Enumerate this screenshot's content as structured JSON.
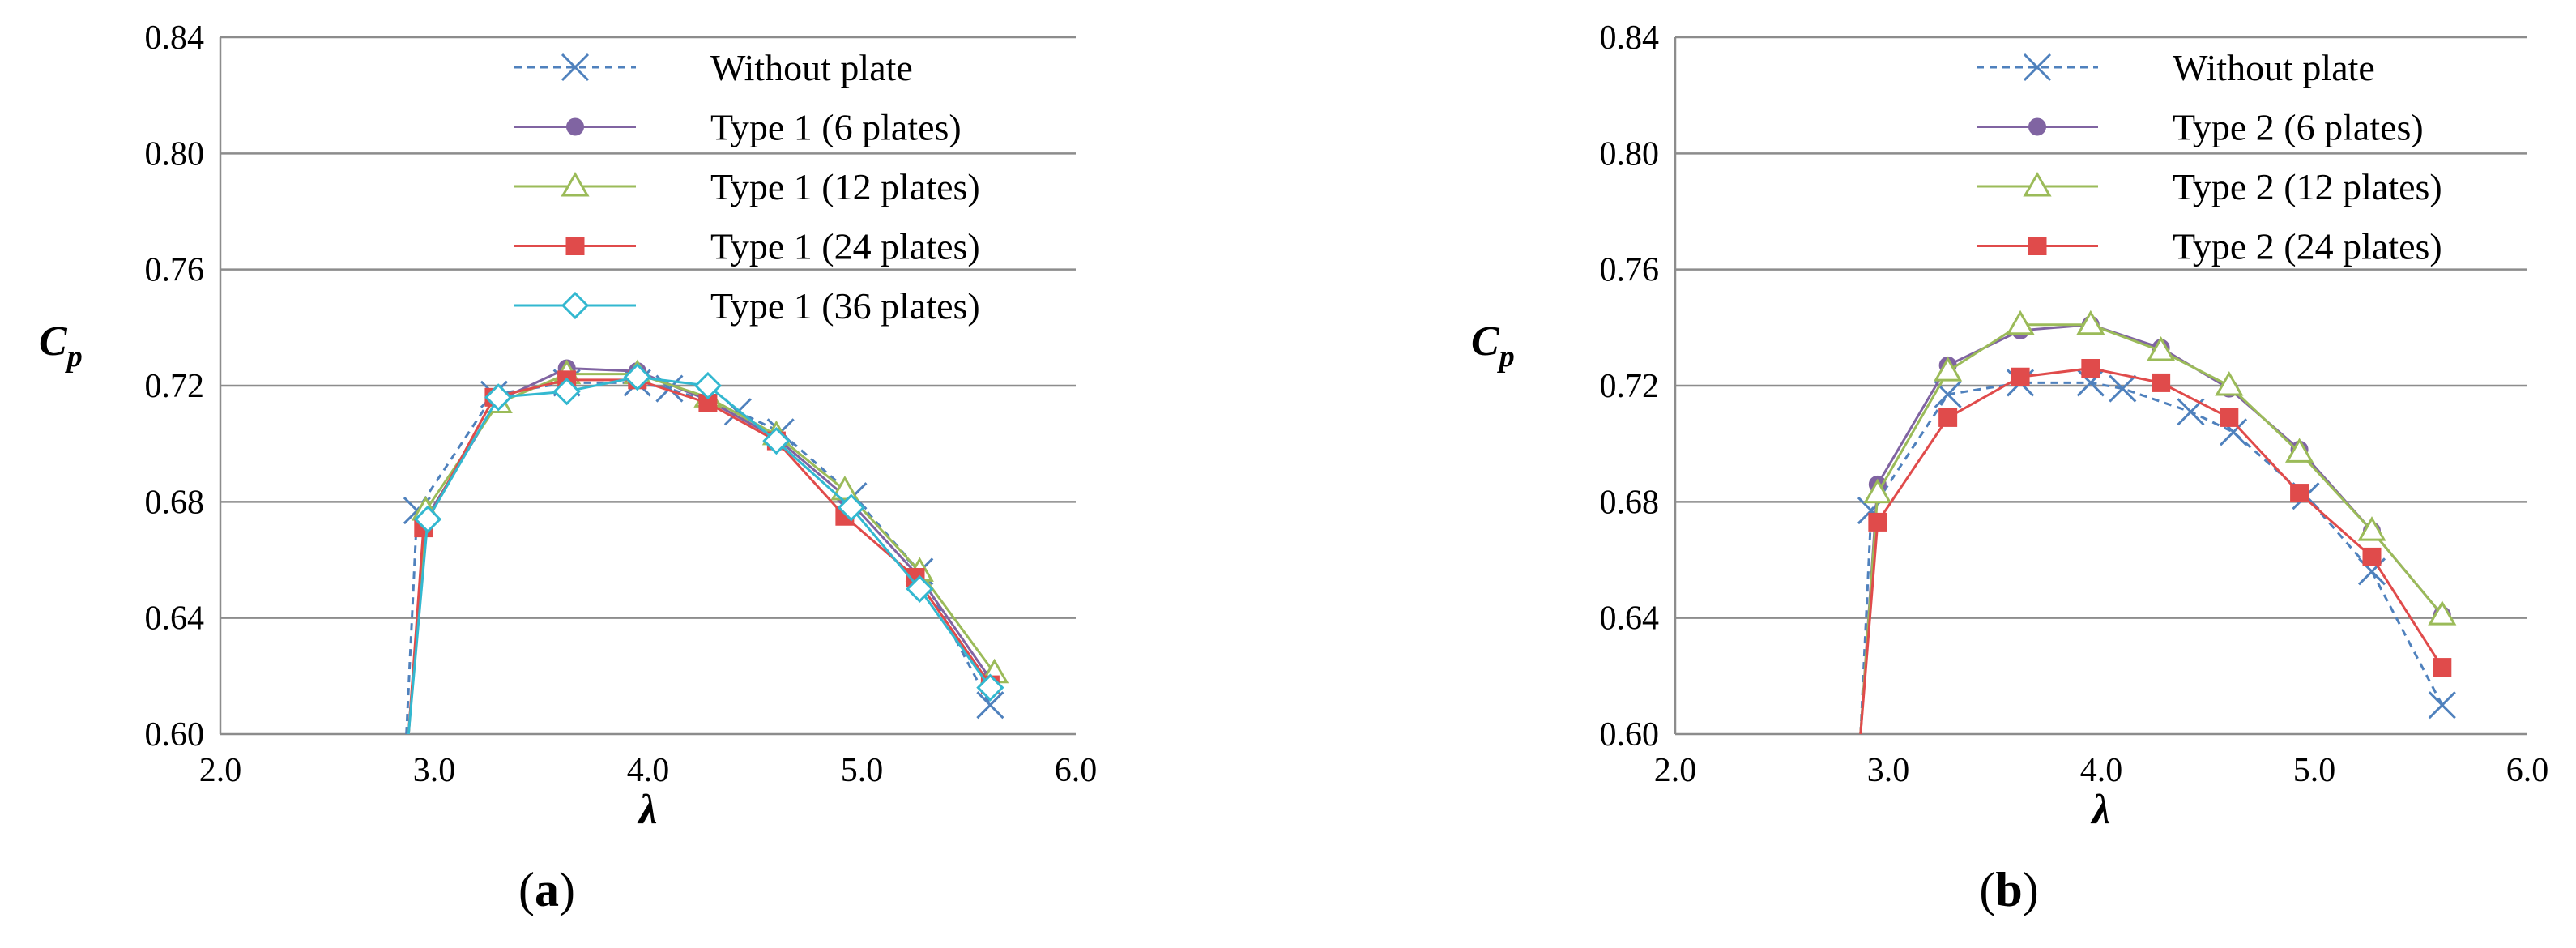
{
  "chart_data": [
    {
      "type": "line",
      "caption_open": "(",
      "caption_letter": "a",
      "caption_close": ")",
      "xlabel": "λ",
      "ylabel_main": "C",
      "ylabel_sub": "p",
      "xlim": [
        2.0,
        6.0
      ],
      "ylim": [
        0.6,
        0.84
      ],
      "xticks": [
        "2.0",
        "3.0",
        "4.0",
        "5.0",
        "6.0"
      ],
      "yticks": [
        "0.60",
        "0.64",
        "0.68",
        "0.72",
        "0.76",
        "0.80",
        "0.84"
      ],
      "grid": "horizontal",
      "legend_position": "top-right",
      "series": [
        {
          "name": "Without plate",
          "color": "#4f81bd",
          "marker": "x",
          "dash": true,
          "x": [
            2.87,
            2.92,
            3.28,
            3.62,
            3.95,
            4.1,
            4.42,
            4.62,
            4.96,
            5.27,
            5.6
          ],
          "y": [
            0.6,
            0.677,
            0.717,
            0.721,
            0.721,
            0.719,
            0.711,
            0.704,
            0.682,
            0.656,
            0.61
          ]
        },
        {
          "name": "Type 1 (6 plates)",
          "color": "#8064a2",
          "marker": "circle",
          "dash": false,
          "x": [
            2.88,
            2.96,
            3.3,
            3.62,
            3.95,
            4.28,
            4.6,
            4.92,
            5.27,
            5.6
          ],
          "y": [
            0.6,
            0.674,
            0.715,
            0.726,
            0.725,
            0.715,
            0.702,
            0.682,
            0.654,
            0.619
          ]
        },
        {
          "name": "Type 1 (12 plates)",
          "color": "#9bbb59",
          "marker": "triangle",
          "dash": false,
          "x": [
            2.88,
            2.96,
            3.3,
            3.62,
            3.95,
            4.28,
            4.6,
            4.92,
            5.27,
            5.62
          ],
          "y": [
            0.6,
            0.677,
            0.714,
            0.724,
            0.724,
            0.716,
            0.703,
            0.684,
            0.656,
            0.621
          ]
        },
        {
          "name": "Type 1 (24 plates)",
          "color": "#e04b4b",
          "marker": "square",
          "dash": false,
          "x": [
            2.88,
            2.95,
            3.28,
            3.62,
            3.95,
            4.28,
            4.6,
            4.92,
            5.25,
            5.6
          ],
          "y": [
            0.6,
            0.671,
            0.716,
            0.722,
            0.722,
            0.714,
            0.701,
            0.675,
            0.654,
            0.617
          ]
        },
        {
          "name": "Type 1 (36 plates)",
          "color": "#33b8d0",
          "marker": "diamond",
          "dash": false,
          "x": [
            2.88,
            2.97,
            3.3,
            3.62,
            3.95,
            4.28,
            4.6,
            4.95,
            5.27,
            5.6
          ],
          "y": [
            0.6,
            0.674,
            0.716,
            0.718,
            0.723,
            0.72,
            0.701,
            0.678,
            0.65,
            0.616
          ]
        }
      ]
    },
    {
      "type": "line",
      "caption_open": "(",
      "caption_letter": "b",
      "caption_close": ")",
      "xlabel": "λ",
      "ylabel_main": "C",
      "ylabel_sub": "p",
      "xlim": [
        2.0,
        6.0
      ],
      "ylim": [
        0.6,
        0.84
      ],
      "xticks": [
        "2.0",
        "3.0",
        "4.0",
        "5.0",
        "6.0"
      ],
      "yticks": [
        "0.60",
        "0.64",
        "0.68",
        "0.72",
        "0.76",
        "0.80",
        "0.84"
      ],
      "grid": "horizontal",
      "legend_position": "top-right",
      "series": [
        {
          "name": "Without plate",
          "color": "#4f81bd",
          "marker": "x",
          "dash": true,
          "x": [
            2.87,
            2.92,
            3.28,
            3.62,
            3.95,
            4.1,
            4.42,
            4.62,
            4.96,
            5.27,
            5.6
          ],
          "y": [
            0.6,
            0.677,
            0.717,
            0.721,
            0.721,
            0.719,
            0.711,
            0.704,
            0.682,
            0.656,
            0.61
          ]
        },
        {
          "name": "Type 2 (6 plates)",
          "color": "#8064a2",
          "marker": "circle",
          "dash": false,
          "x": [
            2.87,
            2.95,
            3.28,
            3.62,
            3.95,
            4.28,
            4.6,
            4.93,
            5.27,
            5.6
          ],
          "y": [
            0.6,
            0.686,
            0.727,
            0.739,
            0.741,
            0.733,
            0.719,
            0.698,
            0.67,
            0.641
          ]
        },
        {
          "name": "Type 2 (12 plates)",
          "color": "#9bbb59",
          "marker": "triangle",
          "dash": false,
          "x": [
            2.87,
            2.95,
            3.28,
            3.62,
            3.95,
            4.28,
            4.6,
            4.93,
            5.27,
            5.6
          ],
          "y": [
            0.6,
            0.683,
            0.725,
            0.741,
            0.741,
            0.732,
            0.72,
            0.697,
            0.67,
            0.641
          ]
        },
        {
          "name": "Type 2 (24 plates)",
          "color": "#e04b4b",
          "marker": "square",
          "dash": false,
          "x": [
            2.87,
            2.95,
            3.28,
            3.62,
            3.95,
            4.28,
            4.6,
            4.93,
            5.27,
            5.6
          ],
          "y": [
            0.6,
            0.673,
            0.709,
            0.723,
            0.726,
            0.721,
            0.709,
            0.683,
            0.661,
            0.623
          ]
        }
      ]
    }
  ]
}
